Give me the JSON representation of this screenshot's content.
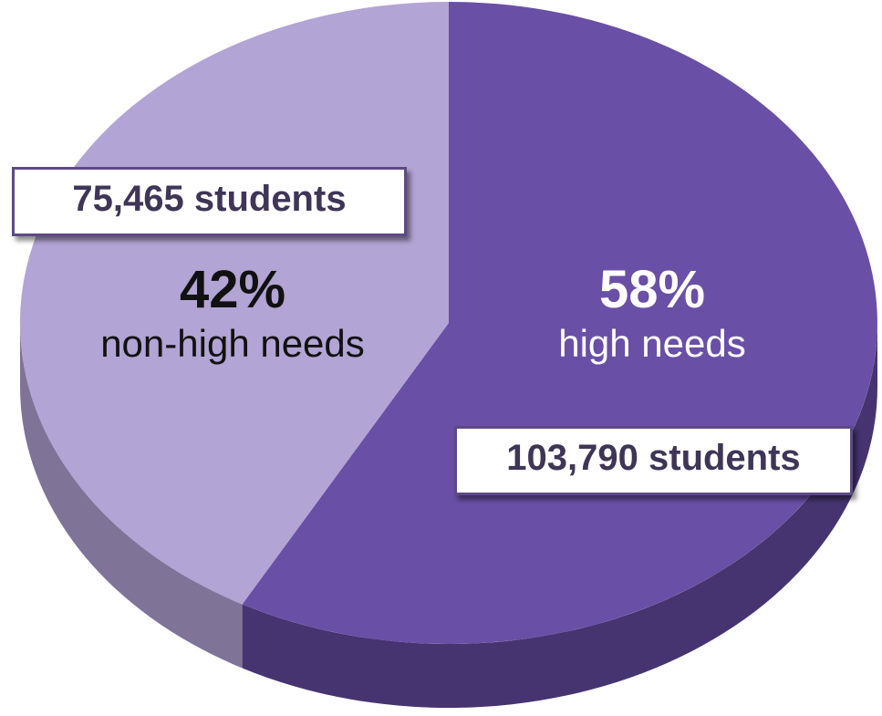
{
  "chart_data": {
    "type": "pie",
    "slices": [
      {
        "label": "high needs",
        "percent": 58,
        "percent_label": "58%",
        "count_label": "103,790 students",
        "color": "#6a4fa6",
        "side_color": "#463470"
      },
      {
        "label": "non-high needs",
        "percent": 42,
        "percent_label": "42%",
        "count_label": "75,465 students",
        "color": "#b2a4d4",
        "side_color": "#7f7398"
      }
    ]
  }
}
